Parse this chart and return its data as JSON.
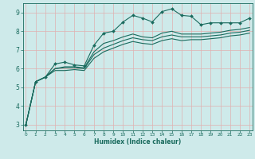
{
  "xlabel": "Humidex (Indice chaleur)",
  "bg_color": "#ceeaea",
  "plot_bg_color": "#ceeaea",
  "grid_color": "#e0b0b0",
  "line_color": "#1a6b5e",
  "x_values": [
    0,
    1,
    2,
    3,
    4,
    5,
    6,
    7,
    8,
    9,
    10,
    11,
    12,
    13,
    14,
    15,
    16,
    17,
    18,
    19,
    20,
    21,
    22,
    23
  ],
  "line1_y": [
    3.0,
    5.3,
    5.55,
    6.25,
    6.35,
    6.2,
    6.15,
    7.25,
    7.9,
    8.0,
    8.5,
    8.85,
    8.7,
    8.5,
    9.05,
    9.2,
    8.85,
    8.8,
    8.35,
    8.45,
    8.45,
    8.45,
    8.45,
    8.7
  ],
  "line2_y": [
    3.0,
    5.3,
    5.55,
    6.0,
    6.1,
    6.1,
    6.05,
    6.9,
    7.35,
    7.5,
    7.7,
    7.85,
    7.7,
    7.65,
    7.9,
    8.0,
    7.85,
    7.85,
    7.85,
    7.9,
    7.95,
    8.05,
    8.1,
    8.2
  ],
  "line3_y": [
    3.0,
    5.3,
    5.55,
    6.0,
    6.05,
    6.05,
    6.0,
    6.75,
    7.1,
    7.3,
    7.5,
    7.65,
    7.55,
    7.5,
    7.7,
    7.8,
    7.7,
    7.7,
    7.7,
    7.75,
    7.8,
    7.9,
    7.95,
    8.05
  ],
  "line4_y": [
    3.0,
    5.3,
    5.55,
    5.9,
    5.9,
    5.95,
    5.9,
    6.55,
    6.9,
    7.1,
    7.3,
    7.45,
    7.35,
    7.3,
    7.5,
    7.6,
    7.5,
    7.55,
    7.55,
    7.6,
    7.65,
    7.75,
    7.8,
    7.9
  ],
  "yticks": [
    3,
    4,
    5,
    6,
    7,
    8,
    9
  ],
  "xticks": [
    0,
    1,
    2,
    3,
    4,
    5,
    6,
    7,
    8,
    9,
    10,
    11,
    12,
    13,
    14,
    15,
    16,
    17,
    18,
    19,
    20,
    21,
    22,
    23
  ],
  "ylim": [
    2.7,
    9.5
  ],
  "xlim": [
    -0.3,
    23.3
  ]
}
